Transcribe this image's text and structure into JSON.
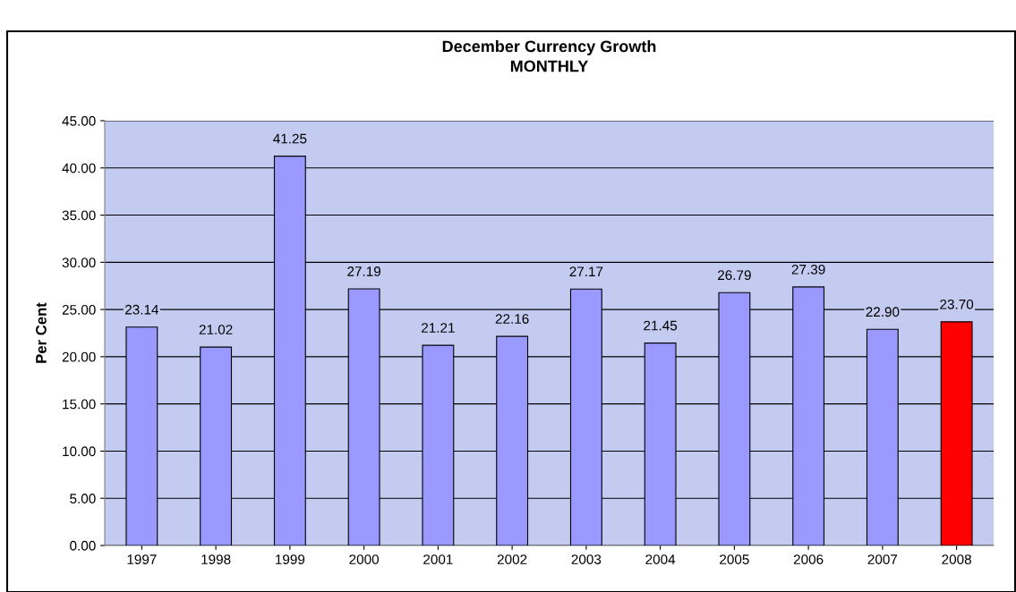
{
  "chart_data": {
    "type": "bar",
    "title": "December Currency Growth\nMONTHLY",
    "ylabel": "Per Cent",
    "categories": [
      "1997",
      "1998",
      "1999",
      "2000",
      "2001",
      "2002",
      "2003",
      "2004",
      "2005",
      "2006",
      "2007",
      "2008"
    ],
    "values": [
      23.14,
      21.02,
      41.25,
      27.19,
      21.21,
      22.16,
      27.17,
      21.45,
      26.79,
      27.39,
      22.9,
      23.7
    ],
    "colors": [
      "#9999ff",
      "#9999ff",
      "#9999ff",
      "#9999ff",
      "#9999ff",
      "#9999ff",
      "#9999ff",
      "#9999ff",
      "#9999ff",
      "#9999ff",
      "#9999ff",
      "#ff0000"
    ],
    "value_labels": [
      "23.14",
      "21.02",
      "41.25",
      "27.19",
      "21.21",
      "22.16",
      "27.17",
      "21.45",
      "26.79",
      "27.39",
      "22.90",
      "23.70"
    ],
    "ylim": [
      0,
      45
    ],
    "yticks": [
      {
        "value": 0,
        "label": "0.00"
      },
      {
        "value": 5,
        "label": "5.00"
      },
      {
        "value": 10,
        "label": "10.00"
      },
      {
        "value": 15,
        "label": "15.00"
      },
      {
        "value": 20,
        "label": "20.00"
      },
      {
        "value": 25,
        "label": "25.00"
      },
      {
        "value": 30,
        "label": "30.00"
      },
      {
        "value": 35,
        "label": "35.00"
      },
      {
        "value": 40,
        "label": "40.00"
      },
      {
        "value": 45,
        "label": "45.00"
      }
    ],
    "grid": "y"
  }
}
